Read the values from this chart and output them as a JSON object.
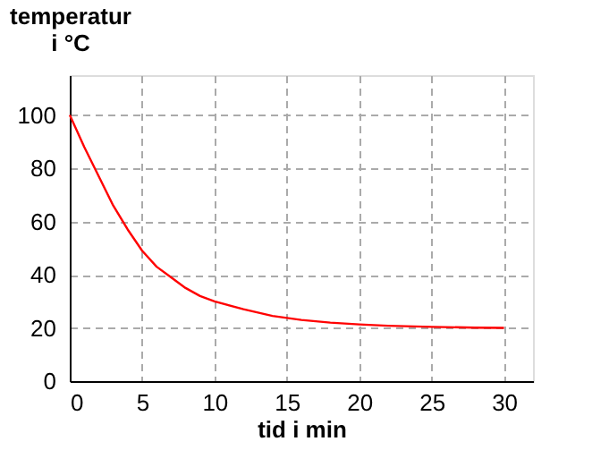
{
  "chart_data": {
    "type": "line",
    "xlabel": "tid i min",
    "ylabel": "temperatur\ni °C",
    "x": [
      0,
      1,
      2,
      3,
      4,
      5,
      6,
      7,
      8,
      9,
      10,
      12,
      14,
      16,
      18,
      20,
      22,
      25,
      28,
      30
    ],
    "series": [
      {
        "color": "#ff0000",
        "values": [
          100,
          88,
          77,
          66,
          57,
          49,
          43,
          39,
          35,
          32,
          30,
          27,
          24.5,
          23,
          22,
          21.3,
          20.8,
          20.4,
          20.1,
          20
        ]
      }
    ],
    "xlim": [
      0,
      32
    ],
    "ylim": [
      0,
      115
    ],
    "xticks": [
      0,
      5,
      10,
      15,
      20,
      25,
      30
    ],
    "yticks": [
      0,
      20,
      40,
      60,
      80,
      100
    ],
    "grid": true,
    "legend": false
  }
}
